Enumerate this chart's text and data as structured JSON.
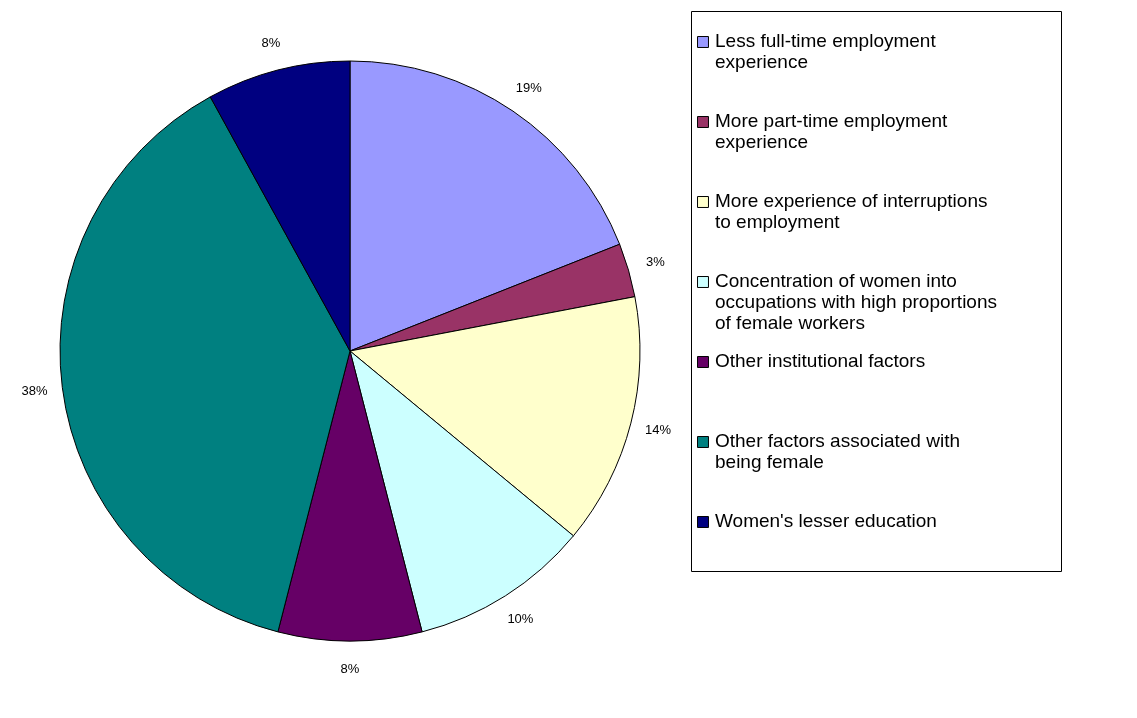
{
  "chart_data": {
    "type": "pie",
    "categories": [
      "Less full-time employment experience",
      "More part-time employment experience",
      "More experience of interruptions to employment",
      "Concentration of women into occupations with high proportions of female workers",
      "Other institutional factors",
      "Other factors associated with being female",
      "Women's lesser education"
    ],
    "values": [
      19,
      3,
      14,
      10,
      8,
      38,
      8
    ],
    "colors": [
      "#9999ff",
      "#993366",
      "#ffffcc",
      "#ccffff",
      "#660066",
      "#008080",
      "#000080"
    ],
    "value_labels": [
      "19%",
      "3%",
      "14%",
      "10%",
      "8%",
      "38%",
      "8%"
    ],
    "legend": "right"
  }
}
